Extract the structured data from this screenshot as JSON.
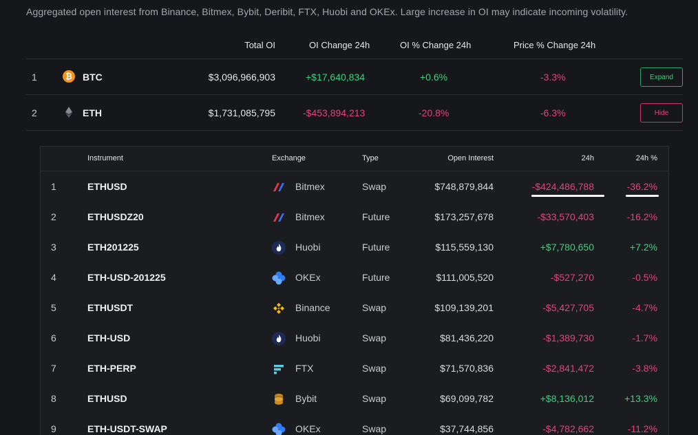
{
  "description": "Aggregated open interest from Binance, Bitmex, Bybit, Deribit, FTX, Huobi and OKEx. Large increase in OI may indicate incoming volatility.",
  "top_table": {
    "headers": {
      "total_oi": "Total OI",
      "oi_change": "OI Change 24h",
      "oi_pct": "OI % Change 24h",
      "price_pct": "Price % Change 24h"
    },
    "rows": [
      {
        "index": "1",
        "symbol": "BTC",
        "icon": "bitcoin-icon",
        "total_oi": "$3,096,966,903",
        "oi_change": "+$17,640,834",
        "oi_pct": "+0.6%",
        "price_pct": "-3.3%",
        "button": "Expand"
      },
      {
        "index": "2",
        "symbol": "ETH",
        "icon": "ethereum-icon",
        "total_oi": "$1,731,085,795",
        "oi_change": "-$453,894,213",
        "oi_pct": "-20.8%",
        "price_pct": "-6.3%",
        "button": "Hide"
      }
    ]
  },
  "instrument_table": {
    "headers": {
      "instrument": "Instrument",
      "exchange": "Exchange",
      "type": "Type",
      "open_interest": "Open Interest",
      "change": "24h",
      "change_pct": "24h %"
    },
    "rows": [
      {
        "index": "1",
        "instrument": "ETHUSD",
        "exchange": "Bitmex",
        "icon": "bitmex-icon",
        "type": "Swap",
        "open_interest": "$748,879,844",
        "change": "-$424,486,788",
        "change_pct": "-36.2%"
      },
      {
        "index": "2",
        "instrument": "ETHUSDZ20",
        "exchange": "Bitmex",
        "icon": "bitmex-icon",
        "type": "Future",
        "open_interest": "$173,257,678",
        "change": "-$33,570,403",
        "change_pct": "-16.2%"
      },
      {
        "index": "3",
        "instrument": "ETH201225",
        "exchange": "Huobi",
        "icon": "huobi-icon",
        "type": "Future",
        "open_interest": "$115,559,130",
        "change": "+$7,780,650",
        "change_pct": "+7.2%"
      },
      {
        "index": "4",
        "instrument": "ETH-USD-201225",
        "exchange": "OKEx",
        "icon": "okex-icon",
        "type": "Future",
        "open_interest": "$111,005,520",
        "change": "-$527,270",
        "change_pct": "-0.5%"
      },
      {
        "index": "5",
        "instrument": "ETHUSDT",
        "exchange": "Binance",
        "icon": "binance-icon",
        "type": "Swap",
        "open_interest": "$109,139,201",
        "change": "-$5,427,705",
        "change_pct": "-4.7%"
      },
      {
        "index": "6",
        "instrument": "ETH-USD",
        "exchange": "Huobi",
        "icon": "huobi-icon",
        "type": "Swap",
        "open_interest": "$81,436,220",
        "change": "-$1,389,730",
        "change_pct": "-1.7%"
      },
      {
        "index": "7",
        "instrument": "ETH-PERP",
        "exchange": "FTX",
        "icon": "ftx-icon",
        "type": "Swap",
        "open_interest": "$71,570,836",
        "change": "-$2,841,472",
        "change_pct": "-3.8%"
      },
      {
        "index": "8",
        "instrument": "ETHUSD",
        "exchange": "Bybit",
        "icon": "bybit-icon",
        "type": "Swap",
        "open_interest": "$69,099,782",
        "change": "+$8,136,012",
        "change_pct": "+13.3%"
      },
      {
        "index": "9",
        "instrument": "ETH-USDT-SWAP",
        "exchange": "OKEx",
        "icon": "okex-icon",
        "type": "Swap",
        "open_interest": "$37,744,856",
        "change": "-$4,782,662",
        "change_pct": "-11.2%"
      }
    ]
  },
  "colors": {
    "positive": "#3fcf7c",
    "negative": "#e8417a",
    "background": "#16171a"
  }
}
